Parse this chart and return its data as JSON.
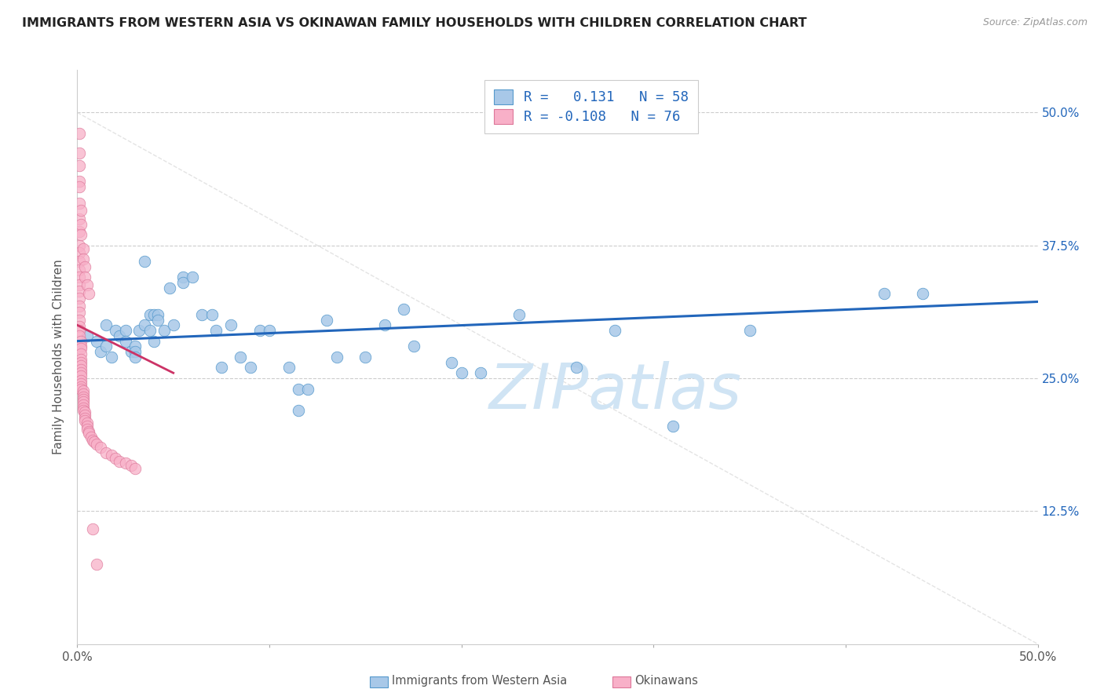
{
  "title": "IMMIGRANTS FROM WESTERN ASIA VS OKINAWAN FAMILY HOUSEHOLDS WITH CHILDREN CORRELATION CHART",
  "source": "Source: ZipAtlas.com",
  "ylabel": "Family Households with Children",
  "y_tick_vals": [
    0.125,
    0.25,
    0.375,
    0.5
  ],
  "y_tick_labels": [
    "12.5%",
    "25.0%",
    "37.5%",
    "50.0%"
  ],
  "x_tick_vals": [
    0.0,
    0.1,
    0.2,
    0.3,
    0.4,
    0.5
  ],
  "x_tick_labels": [
    "0.0%",
    "",
    "",
    "",
    "",
    "50.0%"
  ],
  "x_lim": [
    0.0,
    0.5
  ],
  "y_lim": [
    0.0,
    0.54
  ],
  "blue_scatter_color": "#a8c8e8",
  "blue_edge_color": "#5599cc",
  "pink_scatter_color": "#f8b0c8",
  "pink_edge_color": "#dd7799",
  "trendline_blue_color": "#2266bb",
  "trendline_pink_color": "#cc3366",
  "diag_color": "#dddddd",
  "watermark_color": "#d0e4f4",
  "blue_points_x": [
    0.005,
    0.01,
    0.012,
    0.015,
    0.015,
    0.018,
    0.02,
    0.022,
    0.025,
    0.025,
    0.028,
    0.03,
    0.03,
    0.03,
    0.032,
    0.035,
    0.035,
    0.038,
    0.038,
    0.04,
    0.04,
    0.042,
    0.042,
    0.045,
    0.048,
    0.05,
    0.055,
    0.055,
    0.06,
    0.065,
    0.07,
    0.072,
    0.075,
    0.08,
    0.085,
    0.09,
    0.095,
    0.1,
    0.11,
    0.115,
    0.115,
    0.12,
    0.13,
    0.135,
    0.15,
    0.16,
    0.17,
    0.175,
    0.195,
    0.2,
    0.21,
    0.23,
    0.26,
    0.28,
    0.35,
    0.42,
    0.44,
    0.31
  ],
  "blue_points_y": [
    0.29,
    0.285,
    0.275,
    0.3,
    0.28,
    0.27,
    0.295,
    0.29,
    0.295,
    0.285,
    0.275,
    0.28,
    0.275,
    0.27,
    0.295,
    0.36,
    0.3,
    0.295,
    0.31,
    0.31,
    0.285,
    0.31,
    0.305,
    0.295,
    0.335,
    0.3,
    0.345,
    0.34,
    0.345,
    0.31,
    0.31,
    0.295,
    0.26,
    0.3,
    0.27,
    0.26,
    0.295,
    0.295,
    0.26,
    0.22,
    0.24,
    0.24,
    0.305,
    0.27,
    0.27,
    0.3,
    0.315,
    0.28,
    0.265,
    0.255,
    0.255,
    0.31,
    0.26,
    0.295,
    0.295,
    0.33,
    0.33,
    0.205
  ],
  "pink_points_x": [
    0.001,
    0.001,
    0.001,
    0.001,
    0.001,
    0.001,
    0.001,
    0.001,
    0.001,
    0.001,
    0.001,
    0.001,
    0.001,
    0.001,
    0.001,
    0.001,
    0.001,
    0.001,
    0.001,
    0.001,
    0.002,
    0.002,
    0.002,
    0.002,
    0.002,
    0.002,
    0.002,
    0.002,
    0.002,
    0.002,
    0.002,
    0.002,
    0.002,
    0.002,
    0.003,
    0.003,
    0.003,
    0.003,
    0.003,
    0.003,
    0.003,
    0.003,
    0.004,
    0.004,
    0.004,
    0.004,
    0.005,
    0.005,
    0.005,
    0.006,
    0.006,
    0.007,
    0.008,
    0.009,
    0.01,
    0.012,
    0.015,
    0.018,
    0.02,
    0.022,
    0.025,
    0.028,
    0.03,
    0.001,
    0.001,
    0.002,
    0.002,
    0.002,
    0.003,
    0.003,
    0.004,
    0.004,
    0.005,
    0.006,
    0.008,
    0.01
  ],
  "pink_points_y": [
    0.48,
    0.462,
    0.435,
    0.415,
    0.4,
    0.388,
    0.375,
    0.368,
    0.36,
    0.352,
    0.345,
    0.338,
    0.332,
    0.325,
    0.318,
    0.312,
    0.305,
    0.299,
    0.295,
    0.29,
    0.285,
    0.28,
    0.278,
    0.273,
    0.268,
    0.265,
    0.262,
    0.258,
    0.255,
    0.252,
    0.248,
    0.245,
    0.242,
    0.24,
    0.238,
    0.235,
    0.232,
    0.23,
    0.228,
    0.225,
    0.222,
    0.22,
    0.218,
    0.215,
    0.212,
    0.21,
    0.208,
    0.205,
    0.202,
    0.2,
    0.198,
    0.195,
    0.192,
    0.19,
    0.188,
    0.185,
    0.18,
    0.178,
    0.175,
    0.172,
    0.17,
    0.168,
    0.165,
    0.45,
    0.43,
    0.408,
    0.395,
    0.385,
    0.372,
    0.362,
    0.355,
    0.345,
    0.338,
    0.33,
    0.108,
    0.075
  ]
}
